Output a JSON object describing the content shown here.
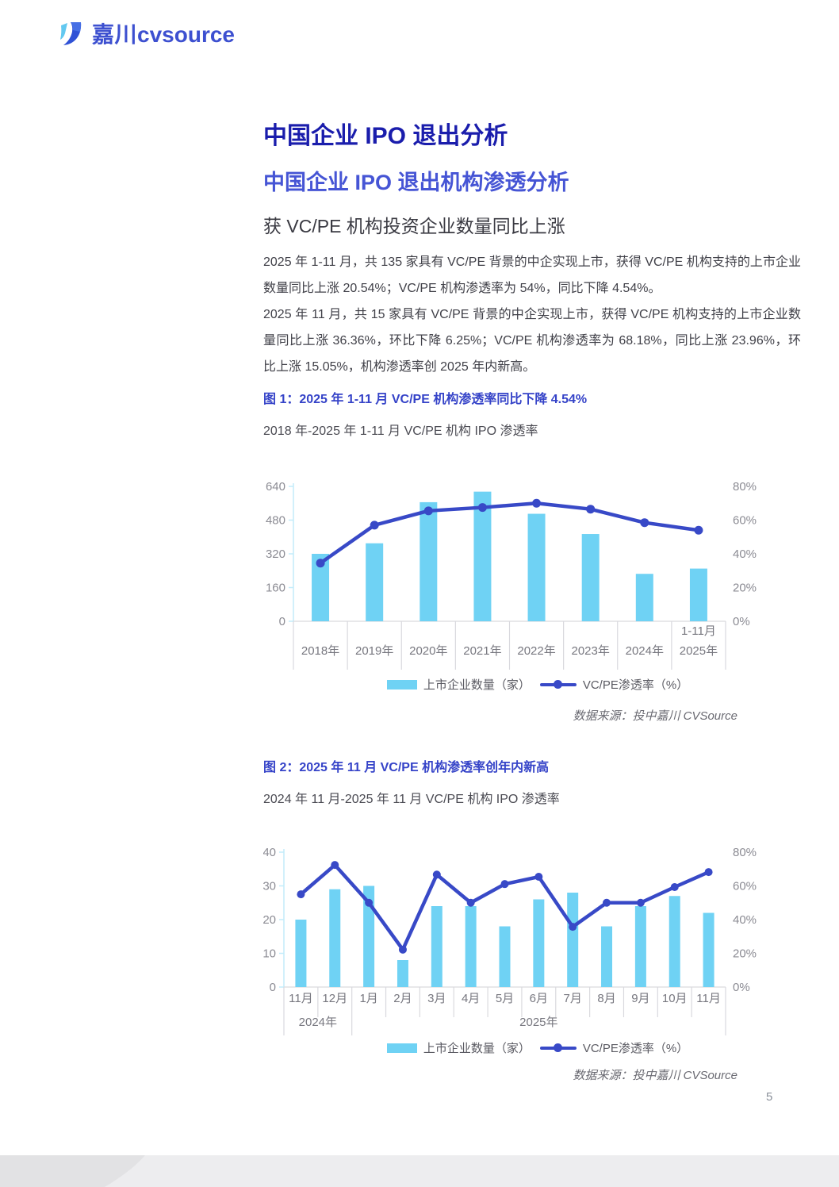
{
  "colors": {
    "bar": "#6fd2f4",
    "line": "#3849c7",
    "heading_dark_blue": "#1a1dac",
    "heading_mid_blue": "#4655d5",
    "caption_blue": "#3543c8",
    "axis_text": "#8b8b93",
    "axis_cyan": "#c3ecfa",
    "grid_gray": "#d9d9de"
  },
  "logo": {
    "cn": "嘉川",
    "en": "cvsource"
  },
  "headings": {
    "h1": "中国企业 IPO 退出分析",
    "h2": "中国企业 IPO 退出机构渗透分析",
    "h3": "获 VC/PE 机构投资企业数量同比上涨"
  },
  "paragraphs": {
    "p1": "2025 年 1-11 月，共 135 家具有 VC/PE 背景的中企实现上市，获得 VC/PE 机构支持的上市企业数量同比上涨 20.54%；VC/PE 机构渗透率为 54%，同比下降 4.54%。",
    "p2": "2025 年 11 月，共 15 家具有 VC/PE 背景的中企实现上市，获得 VC/PE 机构支持的上市企业数量同比上涨 36.36%，环比下降 6.25%；VC/PE 机构渗透率为 68.18%，同比上涨 23.96%，环比上涨 15.05%，机构渗透率创 2025 年内新高。"
  },
  "figure1": {
    "caption": "图 1：2025 年 1-11 月 VC/PE 机构渗透率同比下降 4.54%",
    "subtitle": "2018 年-2025 年 1-11 月 VC/PE 机构 IPO 渗透率",
    "source": "数据来源：投中嘉川 CVSource"
  },
  "figure2": {
    "caption": "图 2：2025 年 11 月 VC/PE 机构渗透率创年内新高",
    "subtitle": "2024 年 11 月-2025 年 11 月 VC/PE 机构 IPO 渗透率",
    "source": "数据来源：投中嘉川 CVSource"
  },
  "page": {
    "number": "5"
  },
  "chart_data": [
    {
      "type": "bar+line",
      "title": "2018 年-2025 年 1-11 月 VC/PE 机构 IPO 渗透率",
      "categories": [
        [
          "2018年"
        ],
        [
          "2019年"
        ],
        [
          "2020年"
        ],
        [
          "2021年"
        ],
        [
          "2022年"
        ],
        [
          "2023年"
        ],
        [
          "2024年"
        ],
        [
          "1-11月",
          "2025年"
        ]
      ],
      "series": [
        {
          "name": "上市企业数量（家）",
          "type": "bar",
          "axis": "left",
          "values": [
            320,
            370,
            565,
            615,
            510,
            414,
            225,
            250
          ]
        },
        {
          "name": "VC/PE渗透率（%）",
          "type": "line",
          "axis": "right",
          "values": [
            34.5,
            57,
            65.5,
            67.5,
            70,
            66.5,
            58.5,
            54
          ]
        }
      ],
      "left_axis": {
        "ticks": [
          0,
          160,
          320,
          480,
          640
        ],
        "max": 640
      },
      "right_axis": {
        "ticks": [
          "0%",
          "20%",
          "40%",
          "60%",
          "80%"
        ],
        "max": 80
      },
      "grid": false,
      "legend_position": "bottom"
    },
    {
      "type": "bar+line",
      "title": "2024 年 11 月-2025 年 11 月 VC/PE 机构 IPO 渗透率",
      "categories": [
        [
          "11月"
        ],
        [
          "12月"
        ],
        [
          "1月"
        ],
        [
          "2月"
        ],
        [
          "3月"
        ],
        [
          "4月"
        ],
        [
          "5月"
        ],
        [
          "6月"
        ],
        [
          "7月"
        ],
        [
          "8月"
        ],
        [
          "9月"
        ],
        [
          "10月"
        ],
        [
          "11月"
        ]
      ],
      "year_groups": [
        {
          "label": "2024年",
          "span": [
            0,
            1
          ]
        },
        {
          "label": "2025年",
          "span": [
            2,
            12
          ]
        }
      ],
      "series": [
        {
          "name": "上市企业数量（家）",
          "type": "bar",
          "axis": "left",
          "values": [
            20,
            29,
            30,
            8,
            24,
            24,
            18,
            26,
            28,
            18,
            24,
            27,
            22
          ]
        },
        {
          "name": "VC/PE渗透率（%）",
          "type": "line",
          "axis": "right",
          "values": [
            55,
            72.4,
            50,
            22.2,
            66.7,
            50,
            61.1,
            65.4,
            35.7,
            50,
            50,
            59.3,
            68.2
          ]
        }
      ],
      "left_axis": {
        "ticks": [
          0,
          10,
          20,
          30,
          40
        ],
        "max": 40
      },
      "right_axis": {
        "ticks": [
          "0%",
          "20%",
          "40%",
          "60%",
          "80%"
        ],
        "max": 80
      },
      "grid": false,
      "legend_position": "bottom"
    }
  ]
}
